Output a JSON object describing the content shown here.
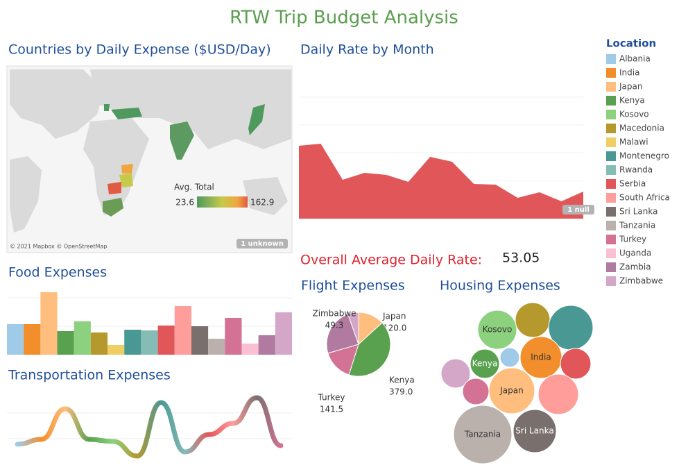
{
  "title": "RTW Trip Budget Analysis",
  "legend": {
    "title": "Location",
    "items": [
      {
        "name": "Albania",
        "color": "#a0cbe8"
      },
      {
        "name": "India",
        "color": "#f28e2b"
      },
      {
        "name": "Japan",
        "color": "#ffbe7d"
      },
      {
        "name": "Kenya",
        "color": "#59a14f"
      },
      {
        "name": "Kosovo",
        "color": "#8cd17d"
      },
      {
        "name": "Macedonia",
        "color": "#b6992d"
      },
      {
        "name": "Malawi",
        "color": "#f1ce63"
      },
      {
        "name": "Montenegro",
        "color": "#499894"
      },
      {
        "name": "Rwanda",
        "color": "#86bcb6"
      },
      {
        "name": "Serbia",
        "color": "#e15759"
      },
      {
        "name": "South Africa",
        "color": "#ff9d9a"
      },
      {
        "name": "Sri Lanka",
        "color": "#79706e"
      },
      {
        "name": "Tanzania",
        "color": "#bab0ac"
      },
      {
        "name": "Turkey",
        "color": "#d37295"
      },
      {
        "name": "Uganda",
        "color": "#fabfd2"
      },
      {
        "name": "Zambia",
        "color": "#b07aa1"
      },
      {
        "name": "Zimbabwe",
        "color": "#d4a6c8"
      }
    ]
  },
  "map": {
    "title": "Countries by Daily Expense ($USD/Day)",
    "color_legend": {
      "title": "Avg. Total",
      "min": 23.6,
      "max": 162.9
    },
    "credit": "© 2021 Mapbox © OpenStreetMap",
    "badge": "1 unknown"
  },
  "overall": {
    "label": "Overall Average Daily Rate:",
    "value": 53.05
  },
  "chart_data": [
    {
      "type": "area",
      "title": "Daily Rate by Month",
      "categories": [
        null,
        null,
        null,
        null,
        null,
        null,
        null,
        null,
        null,
        null,
        null,
        null,
        null,
        null
      ],
      "values": [
        105,
        108,
        56,
        66,
        63,
        53,
        89,
        82,
        50,
        49,
        30,
        38,
        25,
        39
      ],
      "color": "#e15759",
      "badge": "1 null"
    },
    {
      "type": "bar",
      "title": "Food Expenses",
      "values": [
        44,
        44,
        90,
        34,
        48,
        32,
        14,
        36,
        35,
        42,
        70,
        41,
        23,
        53,
        16,
        28,
        61
      ],
      "colors": [
        "#a0cbe8",
        "#f28e2b",
        "#ffbe7d",
        "#59a14f",
        "#8cd17d",
        "#b6992d",
        "#f1ce63",
        "#499894",
        "#86bcb6",
        "#e15759",
        "#ff9d9a",
        "#79706e",
        "#bab0ac",
        "#d37295",
        "#fabfd2",
        "#b07aa1",
        "#d4a6c8"
      ]
    },
    {
      "type": "line",
      "title": "Transportation Expenses",
      "values": [
        25,
        32,
        76,
        32,
        29,
        8,
        85,
        14,
        39,
        55,
        92,
        23
      ],
      "colors": [
        "#a0cbe8",
        "#f28e2b",
        "#ffbe7d",
        "#59a14f",
        "#8cd17d",
        "#b6992d",
        "#499894",
        "#86bcb6",
        "#e15759",
        "#ff9d9a",
        "#79706e",
        "#d37295"
      ]
    },
    {
      "type": "pie",
      "title": "Flight Expenses",
      "categories": [
        "Japan",
        "Kenya",
        "Turkey",
        null,
        "Zimbabwe"
      ],
      "values": [
        120.0,
        379.0,
        141.5,
        219,
        49.3
      ],
      "value_labels": [
        "120.0",
        "379.0",
        "141.5",
        null,
        "49.3"
      ],
      "colors": [
        "#ffbe7d",
        "#59a14f",
        "#d37295",
        "#b07aa1",
        "#d4a6c8"
      ]
    },
    {
      "type": "bubble",
      "title": "Housing Expenses",
      "categories": [
        "Kosovo",
        null,
        null,
        null,
        "India",
        null,
        null,
        "Kenya",
        "Japan",
        null,
        null,
        "Tanzania",
        "Sri Lanka"
      ],
      "values": [
        784,
        625,
        1024,
        196,
        900,
        484,
        441,
        441,
        1089,
        841,
        361,
        1764,
        961
      ],
      "colors": [
        "#8cd17d",
        "#b6992d",
        "#499894",
        "#a0cbe8",
        "#f28e2b",
        "#e15759",
        "#d4a6c8",
        "#59a14f",
        "#ffbe7d",
        "#ff9d9a",
        "#d37295",
        "#bab0ac",
        "#79706e"
      ]
    }
  ]
}
